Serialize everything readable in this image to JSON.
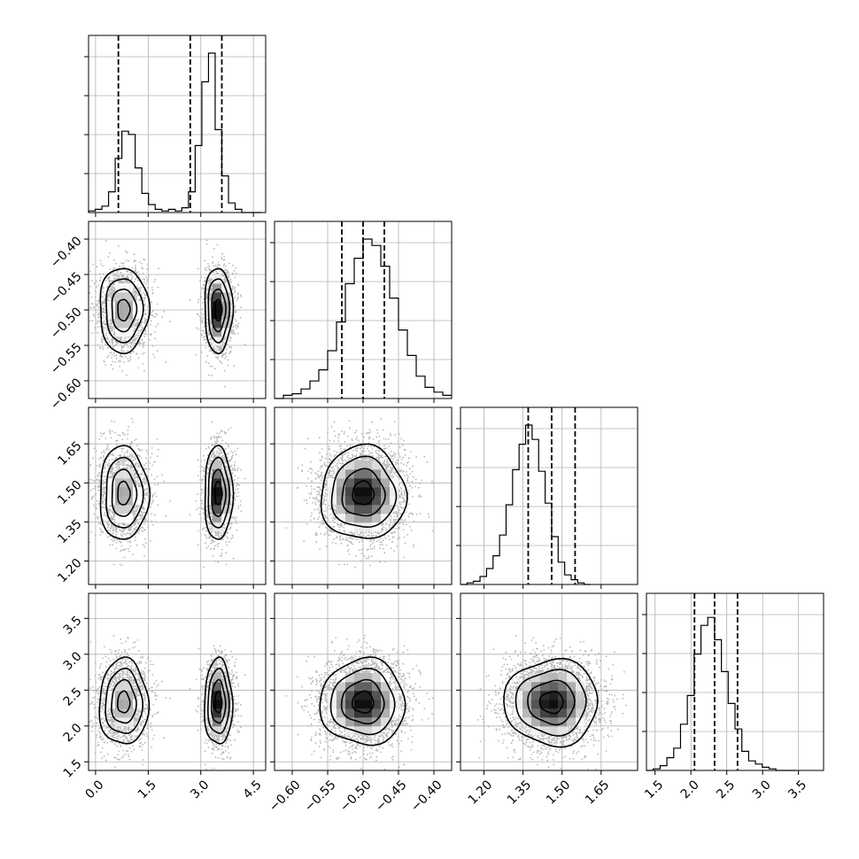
{
  "chart_data": {
    "type": "corner",
    "parameters": [
      {
        "ticks": [
          0.0,
          1.5,
          3.0,
          4.5
        ],
        "tick_labels": [
          "0.0",
          "1.5",
          "3.0",
          "4.5"
        ],
        "range": [
          -0.2,
          4.85
        ]
      },
      {
        "ticks": [
          -0.6,
          -0.55,
          -0.5,
          -0.45,
          -0.4
        ],
        "tick_labels": [
          "−0.60",
          "−0.55",
          "−0.50",
          "−0.45",
          "−0.40"
        ],
        "range": [
          -0.625,
          -0.375
        ]
      },
      {
        "ticks": [
          1.2,
          1.35,
          1.5,
          1.65
        ],
        "tick_labels": [
          "1.20",
          "1.35",
          "1.50",
          "1.65"
        ],
        "range": [
          1.11,
          1.79
        ]
      },
      {
        "ticks": [
          1.5,
          2.0,
          2.5,
          3.0,
          3.5
        ],
        "tick_labels": [
          "1.5",
          "2.0",
          "2.5",
          "3.0",
          "3.5"
        ],
        "range": [
          1.38,
          3.85
        ]
      }
    ],
    "truths": [
      [
        0.8,
        3.5
      ],
      [
        -0.5
      ],
      [
        1.5
      ],
      [
        2.3
      ]
    ],
    "quantiles": [
      [
        0.65,
        2.7,
        3.6
      ],
      [
        -0.53,
        -0.5,
        -0.47
      ],
      [
        1.37,
        1.46,
        1.55
      ],
      [
        2.05,
        2.33,
        2.65
      ]
    ],
    "histograms": [
      {
        "edges_start": -0.2,
        "bin_width": 0.19,
        "counts": [
          0.01,
          0.02,
          0.04,
          0.13,
          0.34,
          0.51,
          0.49,
          0.28,
          0.12,
          0.05,
          0.02,
          0.01,
          0.02,
          0.01,
          0.03,
          0.13,
          0.42,
          0.82,
          1.0,
          0.52,
          0.23,
          0.06,
          0.02,
          0.0,
          0.0,
          0.0
        ]
      },
      {
        "edges_start": -0.625,
        "bin_width": 0.0125,
        "counts": [
          0.0,
          0.02,
          0.03,
          0.06,
          0.11,
          0.18,
          0.3,
          0.48,
          0.72,
          0.88,
          1.0,
          0.96,
          0.83,
          0.63,
          0.43,
          0.27,
          0.14,
          0.07,
          0.04,
          0.02
        ]
      },
      {
        "edges_start": 1.11,
        "bin_width": 0.025,
        "counts": [
          0.0,
          0.01,
          0.02,
          0.05,
          0.1,
          0.18,
          0.31,
          0.5,
          0.72,
          0.88,
          1.0,
          0.91,
          0.71,
          0.51,
          0.3,
          0.14,
          0.06,
          0.03,
          0.01,
          0.0
        ]
      },
      {
        "edges_start": 1.38,
        "bin_width": 0.095,
        "counts": [
          0.0,
          0.01,
          0.03,
          0.08,
          0.14,
          0.29,
          0.47,
          0.73,
          0.91,
          0.96,
          0.82,
          0.62,
          0.42,
          0.26,
          0.12,
          0.06,
          0.04,
          0.02,
          0.01,
          0.0,
          0.0,
          0.0
        ]
      }
    ],
    "grid": true,
    "style": {
      "dark": "#000000",
      "grid": "#b0b0b0",
      "points": "#b8b8b8"
    }
  }
}
